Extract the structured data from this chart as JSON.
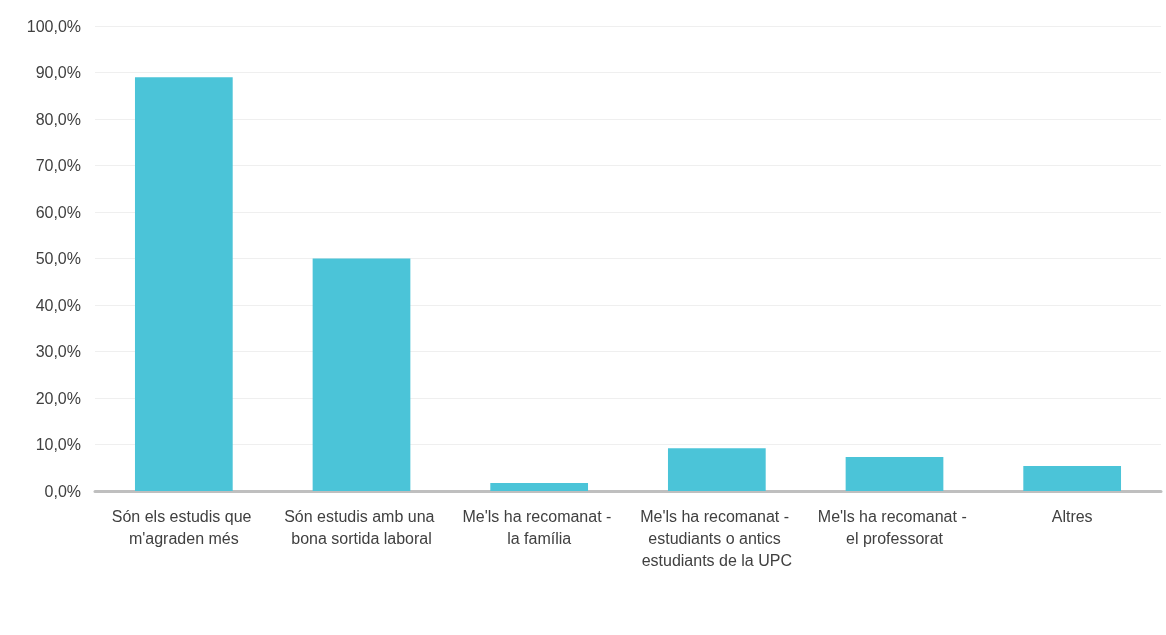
{
  "chart_data": {
    "type": "bar",
    "categories": [
      "Són els estudis que m'agraden més",
      "Són estudis amb una bona sortida laboral",
      "Me'ls ha recomanat - la família",
      "Me'ls ha recomanat - estudiants o antics estudiants de la UPC",
      "Me'ls ha recomanat - el professorat",
      "Altres"
    ],
    "values": [
      89.0,
      50.0,
      1.7,
      9.2,
      7.3,
      5.4
    ],
    "color": "#4bc4d8",
    "ylim": [
      0,
      100
    ],
    "yticks": [
      {
        "value": 0,
        "label": "0,0%"
      },
      {
        "value": 10,
        "label": "10,0%"
      },
      {
        "value": 20,
        "label": "20,0%"
      },
      {
        "value": 30,
        "label": "30,0%"
      },
      {
        "value": 40,
        "label": "40,0%"
      },
      {
        "value": 50,
        "label": "50,0%"
      },
      {
        "value": 60,
        "label": "60,0%"
      },
      {
        "value": 70,
        "label": "70,0%"
      },
      {
        "value": 80,
        "label": "80,0%"
      },
      {
        "value": 90,
        "label": "90,0%"
      },
      {
        "value": 100,
        "label": "100,0%"
      }
    ],
    "grid": "y"
  }
}
